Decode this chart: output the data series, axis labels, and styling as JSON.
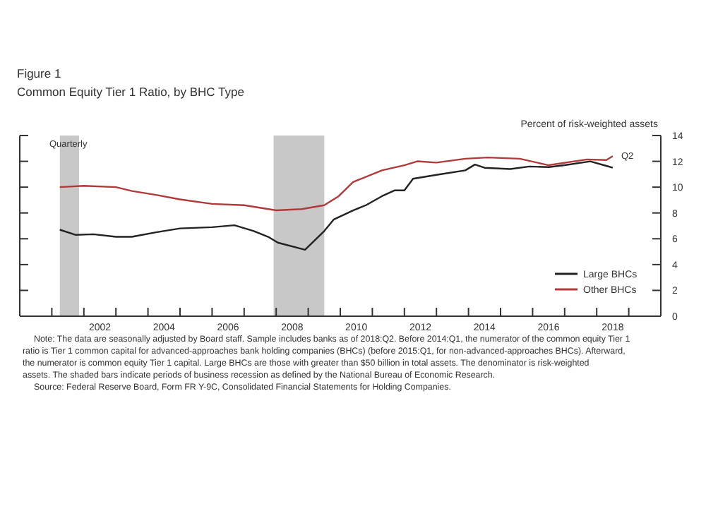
{
  "chart_data": {
    "type": "line",
    "title": "Figure 1",
    "subtitle": "Common Equity Tier 1 Ratio, by BHC Type",
    "ylabel": "Percent of risk-weighted assets",
    "xlim": [
      2000,
      2020
    ],
    "xticks": [
      {
        "value": 2001,
        "label": null
      },
      {
        "value": 2002,
        "label": null
      },
      {
        "value": 2003,
        "label": null
      },
      {
        "value": 2004,
        "label": null
      },
      {
        "value": 2005,
        "label": null
      },
      {
        "value": 2006,
        "label": null
      },
      {
        "value": 2007,
        "label": null
      },
      {
        "value": 2008,
        "label": null
      },
      {
        "value": 2009,
        "label": null
      },
      {
        "value": 2010,
        "label": null
      },
      {
        "value": 2011,
        "label": null
      },
      {
        "value": 2012,
        "label": null
      },
      {
        "value": 2013,
        "label": null
      },
      {
        "value": 2014,
        "label": null
      },
      {
        "value": 2015,
        "label": null
      },
      {
        "value": 2016,
        "label": null
      },
      {
        "value": 2017,
        "label": null
      },
      {
        "value": 2018,
        "label": null
      },
      {
        "value": 2019,
        "label": null
      },
      {
        "value": 2002.5,
        "label": "2002"
      },
      {
        "value": 2004.5,
        "label": "2004"
      },
      {
        "value": 2006.5,
        "label": "2006"
      },
      {
        "value": 2008.5,
        "label": "2008"
      },
      {
        "value": 2010.5,
        "label": "2010"
      },
      {
        "value": 2012.5,
        "label": "2012"
      },
      {
        "value": 2014.5,
        "label": "2014"
      },
      {
        "value": 2016.5,
        "label": "2016"
      },
      {
        "value": 2018.5,
        "label": "2018"
      }
    ],
    "ylim": [
      0,
      14
    ],
    "yticks": [
      0,
      2,
      4,
      6,
      8,
      10,
      12,
      14
    ],
    "grid": false,
    "legend": "bottom right",
    "marker": "none",
    "line_style": "solid",
    "series": [
      {
        "name": "Large BHCs",
        "color": "#222222",
        "x": [
          2001.25,
          2001.75,
          2002.3,
          2003,
          2003.5,
          2004.25,
          2005,
          2006,
          2006.7,
          2007.3,
          2007.75,
          2008.05,
          2008.9,
          2009.5,
          2009.8,
          2010.4,
          2010.8,
          2011.3,
          2011.7,
          2012,
          2012.27,
          2013,
          2013.9,
          2014.2,
          2014.5,
          2015.3,
          2015.9,
          2016.5,
          2017,
          2017.8,
          2018.3,
          2018.5
        ],
        "values": [
          6.7,
          6.3,
          6.35,
          6.15,
          6.15,
          6.5,
          6.8,
          6.9,
          7.05,
          6.6,
          6.15,
          5.7,
          5.15,
          6.6,
          7.5,
          8.2,
          8.6,
          9.3,
          9.75,
          9.75,
          10.65,
          10.95,
          11.3,
          11.75,
          11.5,
          11.4,
          11.6,
          11.55,
          11.7,
          12,
          11.65,
          11.5
        ]
      },
      {
        "name": "Other BHCs",
        "color": "#b03a3a",
        "x": [
          2001.25,
          2002,
          2003,
          2003.5,
          2004.25,
          2005,
          2006,
          2007,
          2008,
          2008.8,
          2009.5,
          2009.95,
          2010.4,
          2011.3,
          2012,
          2012.4,
          2013,
          2013.9,
          2014.6,
          2015.6,
          2016.5,
          2017.7,
          2018.3,
          2018.5
        ],
        "values": [
          10,
          10.1,
          10.0,
          9.7,
          9.4,
          9.05,
          8.7,
          8.6,
          8.2,
          8.3,
          8.6,
          9.3,
          10.4,
          11.3,
          11.7,
          12,
          11.9,
          12.2,
          12.3,
          12.2,
          11.7,
          12.15,
          12.1,
          12.4
        ]
      }
    ],
    "bands": [
      {
        "axis": "x",
        "from": 2001.25,
        "to": 2001.85,
        "color": "#c8c8c8"
      },
      {
        "axis": "x",
        "from": 2007.92,
        "to": 2009.5,
        "color": "#c8c8c8"
      }
    ],
    "annotations": [
      "Quarterly",
      {
        "text": "Q2",
        "x": 2018.5,
        "y": 12.4
      },
      "Note: The data are seasonally adjusted by Board staff. Sample includes banks as of 2018:Q2.  Before 2014:Q1, the numerator of the common equity Tier 1 ratio is Tier 1 common capital for advanced-approaches bank holding companies (BHCs) (before 2015:Q1, for non-advanced-approaches BHCs).  Afterward, the numerator is common equity Tier 1 capital. Large BHCs are those with greater than $50 billion in total assets. The denominator is risk-weighted assets. The shaded bars indicate periods of business recession as defined by the National Bureau of Economic Research.",
      "Source:  Federal Reserve Board, Form FR Y-9C, Consolidated Financial Statements for Holding Companies."
    ]
  }
}
